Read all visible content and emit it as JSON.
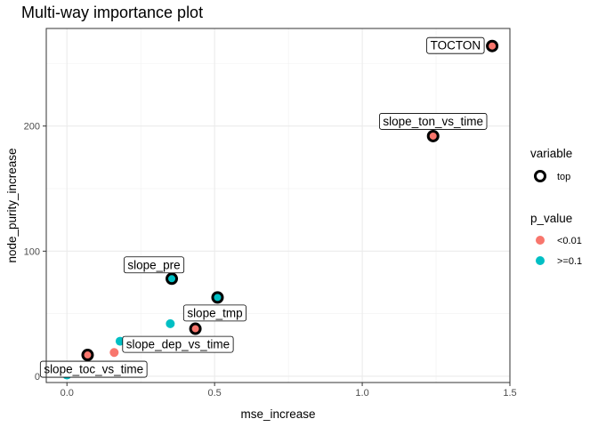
{
  "chart_data": {
    "type": "scatter",
    "title": "Multi-way importance plot",
    "xlabel": "mse_increase",
    "ylabel": "node_purity_increase",
    "xlim": [
      -0.07,
      1.5
    ],
    "ylim": [
      -5,
      278
    ],
    "x_ticks": [
      0.0,
      0.5,
      1.0,
      1.5
    ],
    "x_tick_labels": [
      "0.0",
      "0.5",
      "1.0",
      "1.5"
    ],
    "y_ticks": [
      0,
      100,
      200
    ],
    "y_tick_labels": [
      "0",
      "100",
      "200"
    ],
    "grid": true,
    "colors": {
      "lt_0.01": "#F8766D",
      "ge_0.1": "#00BFC4",
      "top_ring": "#000000"
    },
    "points": [
      {
        "label": "TOCTON",
        "x": 1.44,
        "y": 264,
        "p_value": "<0.01",
        "top": true
      },
      {
        "label": "slope_ton_vs_time",
        "x": 1.24,
        "y": 192,
        "p_value": "<0.01",
        "top": true
      },
      {
        "label": "slope_pre",
        "x": 0.355,
        "y": 78,
        "p_value": ">=0.1",
        "top": true
      },
      {
        "label": "slope_tmp",
        "x": 0.51,
        "y": 63,
        "p_value": ">=0.1",
        "top": true
      },
      {
        "label": "",
        "x": 0.35,
        "y": 42,
        "p_value": ">=0.1",
        "top": false
      },
      {
        "label": "",
        "x": 0.435,
        "y": 38,
        "p_value": "<0.01",
        "top": true
      },
      {
        "label": "slope_dep_vs_time",
        "x": 0.18,
        "y": 28,
        "p_value": ">=0.1",
        "top": false
      },
      {
        "label": "",
        "x": 0.16,
        "y": 19,
        "p_value": "<0.01",
        "top": false
      },
      {
        "label": "",
        "x": 0.07,
        "y": 17,
        "p_value": "<0.01",
        "top": true
      },
      {
        "label": "slope_toc_vs_time",
        "x": 0.0,
        "y": 1,
        "p_value": ">=0.1",
        "top": false
      }
    ],
    "legend": {
      "placement": "right",
      "variable_title": "variable",
      "variable_items": [
        {
          "label": "top"
        }
      ],
      "p_value_title": "p_value",
      "p_value_items": [
        {
          "label": "<0.01",
          "color": "#F8766D"
        },
        {
          "label": ">=0.1",
          "color": "#00BFC4"
        }
      ]
    }
  }
}
